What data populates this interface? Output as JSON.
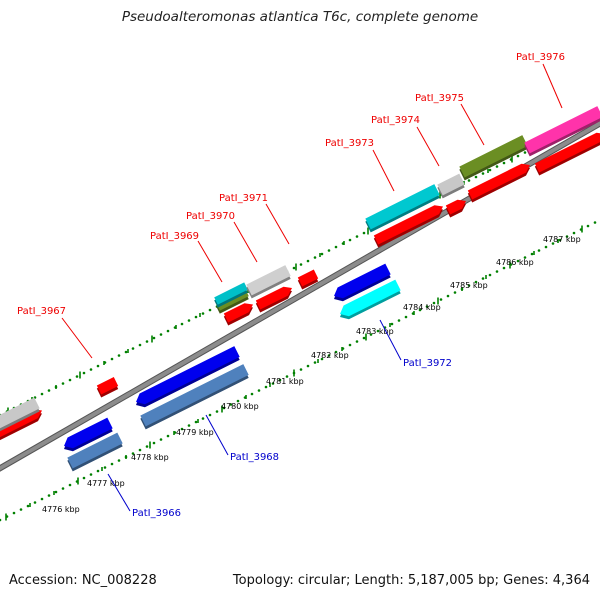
{
  "title": "Pseudoalteromonas atlantica T6c, complete genome",
  "footer": {
    "accession": "Accession: NC_008228",
    "summary": "Topology: circular; Length: 5,187,005 bp; Genes: 4,364"
  },
  "colors": {
    "forward_label": "#ee0000",
    "reverse_label": "#0000cc",
    "track_dots": "#008000",
    "backbone": "#8c8c8c"
  },
  "scale": {
    "unit": "kbp",
    "positions": [
      4776,
      4777,
      4778,
      4779,
      4780,
      4781,
      4782,
      4783,
      4784,
      4785,
      4786,
      4787
    ],
    "labels": [
      "4776 kbp",
      "4777 kbp",
      "4778 kbp",
      "4779 kbp",
      "4780 kbp",
      "4781 kbp",
      "4782 kbp",
      "4783 kbp",
      "4784 kbp",
      "4785 kbp",
      "4786 kbp",
      "4787 kbp"
    ]
  },
  "gene_labels": {
    "forward": [
      "PatI_3967",
      "PatI_3969",
      "PatI_3970",
      "PatI_3971",
      "PatI_3973",
      "PatI_3974",
      "PatI_3975",
      "PatI_3976"
    ],
    "reverse": [
      "PatI_3966",
      "PatI_3968",
      "PatI_3972"
    ]
  }
}
